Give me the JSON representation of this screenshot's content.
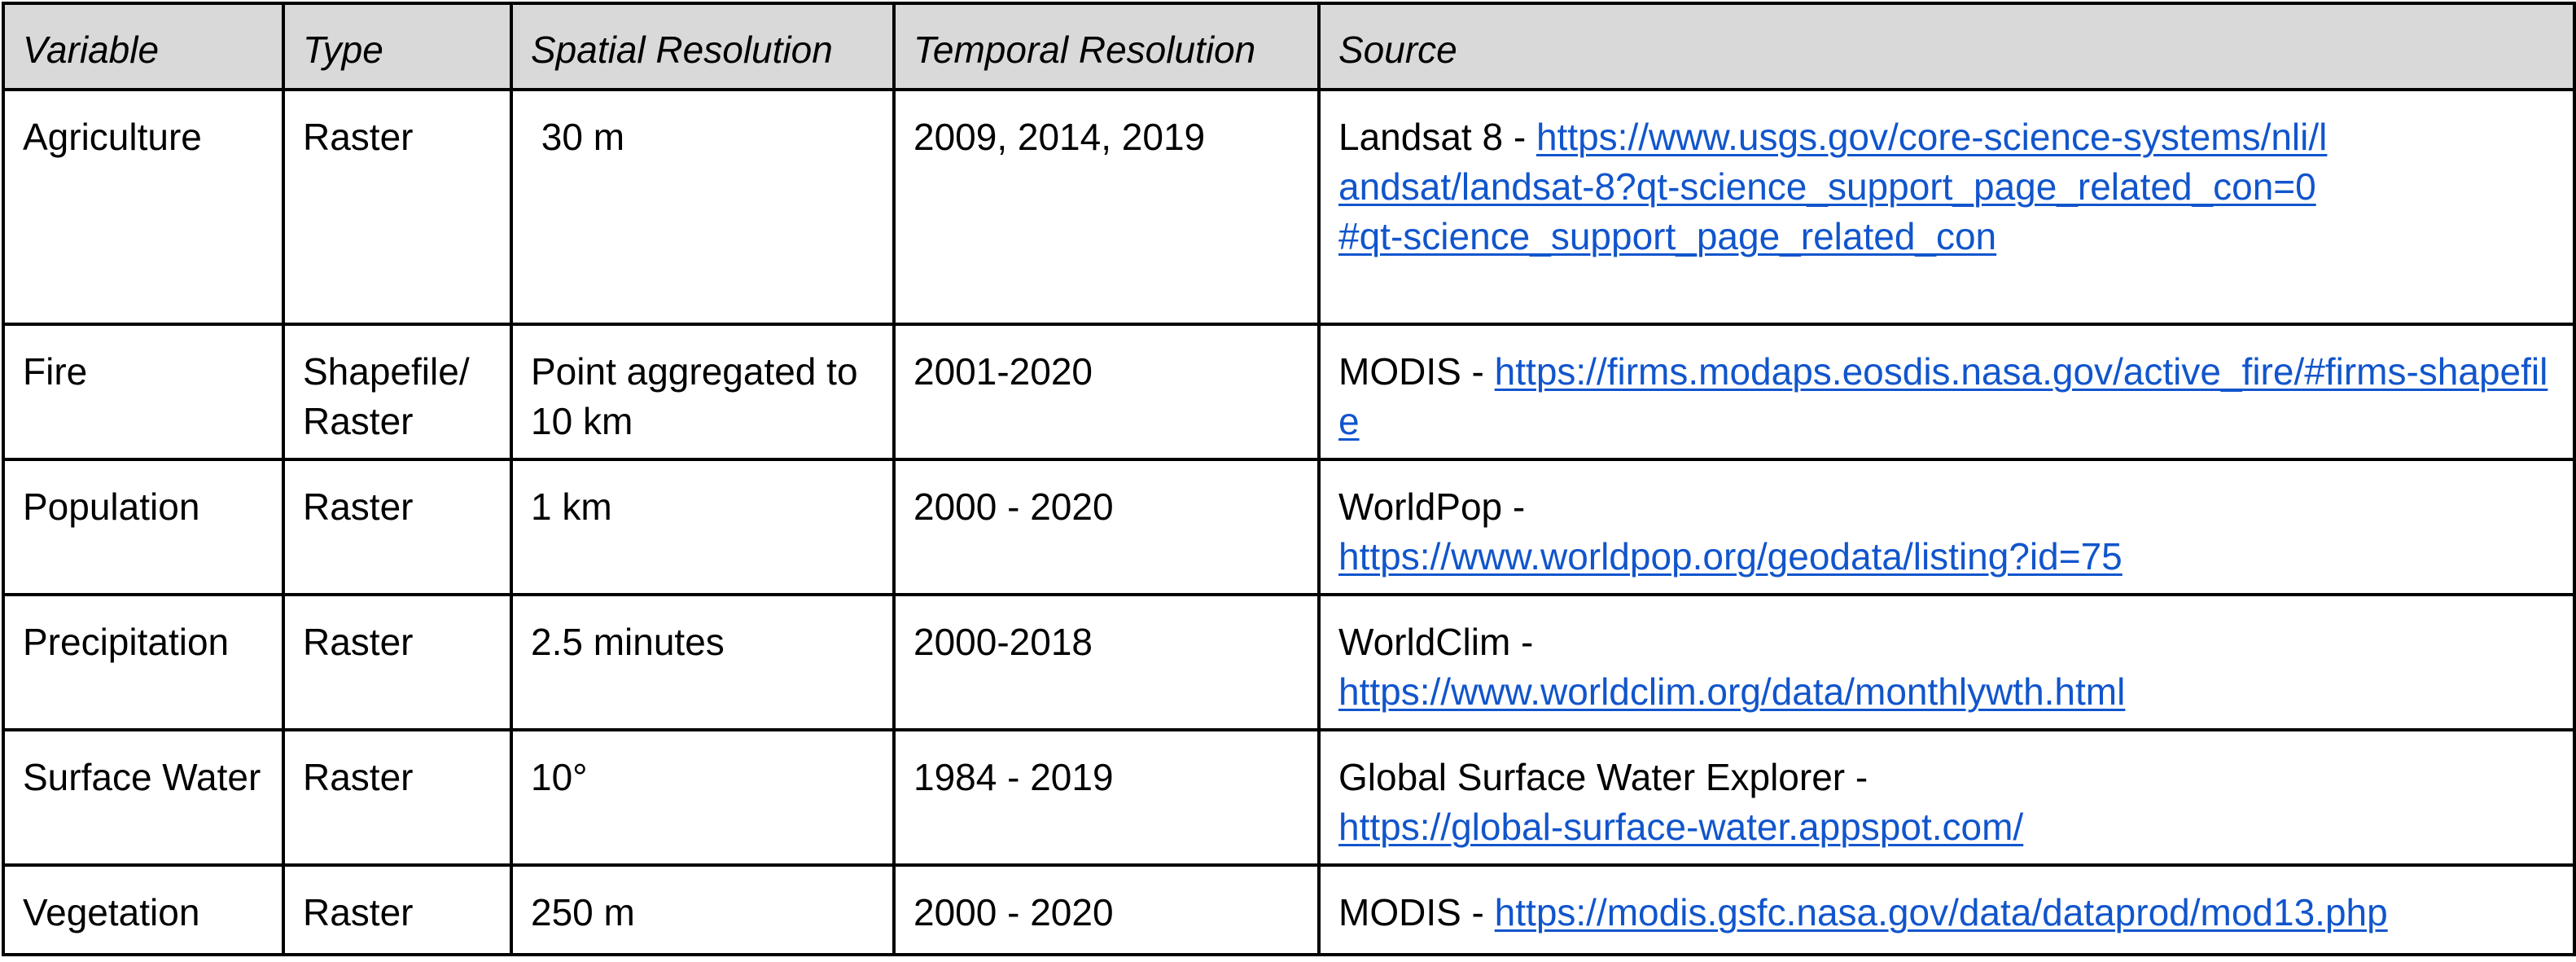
{
  "table": {
    "headers": [
      "Variable",
      "Type",
      "Spatial Resolution",
      "Temporal Resolution",
      "Source"
    ],
    "rows": [
      {
        "variable": "Agriculture",
        "type": "Raster",
        "spatial": " 30 m",
        "temporal": "2009, 2014, 2019",
        "source_name": "Landsat 8 - ",
        "source_url": "https://www.usgs.gov/core-science-systems/nli/landsat/landsat-8?qt-science_support_page_related_con=0#qt-science_support_page_related_con"
      },
      {
        "variable": "Fire",
        "type": "Shapefile/ Raster",
        "spatial": "Point aggregated to 10 km",
        "temporal": "2001-2020",
        "source_name": "MODIS - ",
        "source_url": "https://firms.modaps.eosdis.nasa.gov/active_fire/#firms-shapefile"
      },
      {
        "variable": "Population",
        "type": "Raster",
        "spatial": "1 km",
        "temporal": "2000 - 2020",
        "source_name": "WorldPop - ",
        "source_url": "https://www.worldpop.org/geodata/listing?id=75"
      },
      {
        "variable": "Precipitation",
        "type": "Raster",
        "spatial": "2.5 minutes",
        "temporal": "2000-2018",
        "source_name": "WorldClim - ",
        "source_url": "https://www.worldclim.org/data/monthlywth.html"
      },
      {
        "variable": "Surface Water",
        "type": "Raster",
        "spatial": "10°",
        "temporal": "1984 - 2019",
        "source_name": "Global Surface Water Explorer - ",
        "source_url": "https://global-surface-water.appspot.com/"
      },
      {
        "variable": "Vegetation",
        "type": "Raster",
        "spatial": "250 m",
        "temporal": "2000 - 2020",
        "source_name": "MODIS - ",
        "source_url": "https://modis.gsfc.nasa.gov/data/dataprod/mod13.php"
      }
    ]
  },
  "colors": {
    "header_background": "#d9d9d9",
    "link": "#1155cc",
    "border": "#000000"
  }
}
